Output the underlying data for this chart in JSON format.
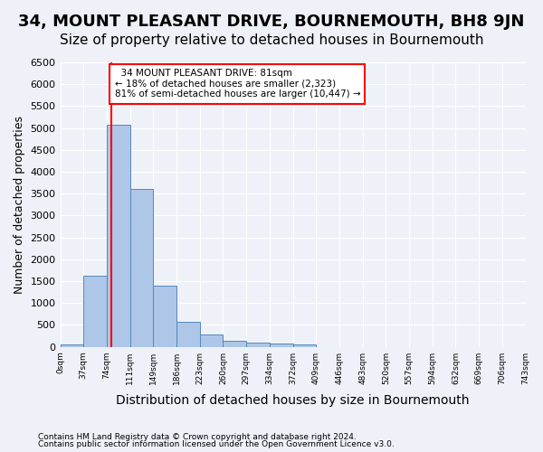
{
  "title": "34, MOUNT PLEASANT DRIVE, BOURNEMOUTH, BH8 9JN",
  "subtitle": "Size of property relative to detached houses in Bournemouth",
  "xlabel": "Distribution of detached houses by size in Bournemouth",
  "ylabel": "Number of detached properties",
  "footer1": "Contains HM Land Registry data © Crown copyright and database right 2024.",
  "footer2": "Contains public sector information licensed under the Open Government Licence v3.0.",
  "bin_labels": [
    "0sqm",
    "37sqm",
    "74sqm",
    "111sqm",
    "149sqm",
    "186sqm",
    "223sqm",
    "260sqm",
    "297sqm",
    "334sqm",
    "372sqm",
    "409sqm",
    "446sqm",
    "483sqm",
    "520sqm",
    "557sqm",
    "594sqm",
    "632sqm",
    "669sqm",
    "706sqm",
    "743sqm"
  ],
  "bar_values": [
    65,
    1630,
    5080,
    3600,
    1400,
    580,
    280,
    140,
    95,
    70,
    55,
    0,
    0,
    0,
    0,
    0,
    0,
    0,
    0,
    0
  ],
  "bar_color": "#aec6e8",
  "bar_edge_color": "#5588bb",
  "property_sqm": 81,
  "bin_starts": [
    0,
    37,
    74,
    111,
    149,
    186,
    223,
    260,
    297,
    334,
    372,
    409,
    446,
    483,
    520,
    557,
    594,
    632,
    669,
    706
  ],
  "red_line_label": "34 MOUNT PLEASANT DRIVE: 81sqm",
  "smaller_pct": "18%",
  "smaller_count": "2,323",
  "larger_pct": "81%",
  "larger_count": "10,447",
  "ylim": [
    0,
    6500
  ],
  "yticks": [
    0,
    500,
    1000,
    1500,
    2000,
    2500,
    3000,
    3500,
    4000,
    4500,
    5000,
    5500,
    6000,
    6500
  ],
  "bg_color": "#eef2f8",
  "grid_color": "#ffffff",
  "title_fontsize": 13,
  "subtitle_fontsize": 11,
  "xlabel_fontsize": 10,
  "ylabel_fontsize": 9
}
